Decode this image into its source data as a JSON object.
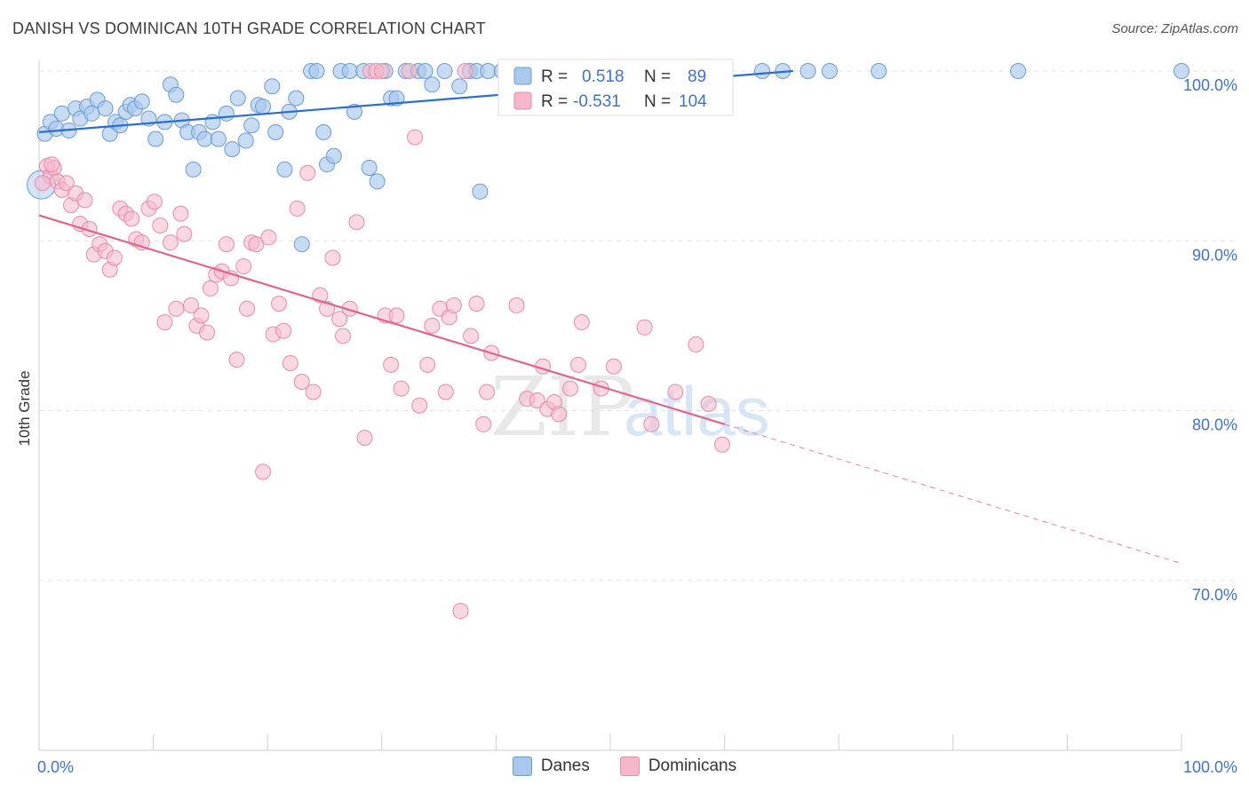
{
  "title": "DANISH VS DOMINICAN 10TH GRADE CORRELATION CHART",
  "source": "Source: ZipAtlas.com",
  "watermark": {
    "zip": "ZIP",
    "atlas": "atlas"
  },
  "stats": [
    {
      "r_label": "R =",
      "r_value": "0.518",
      "n_label": "N =",
      "n_value": "89"
    },
    {
      "r_label": "R =",
      "r_value": "-0.531",
      "n_label": "N =",
      "n_value": "104"
    }
  ],
  "legend": [
    "Danes",
    "Dominicans"
  ],
  "colors": {
    "danes_fill": "#a9c8ec",
    "danes_stroke": "#6b9bd6",
    "danes_line": "#2b6fcc",
    "dom_fill": "#f5b8cb",
    "dom_stroke": "#e88aa8",
    "dom_line": "#e0648e",
    "value_text": "#3f72c8",
    "grid": "#e3e3e3"
  },
  "chart_data": {
    "type": "scatter",
    "title": "DANISH VS DOMINICAN 10TH GRADE CORRELATION CHART",
    "xlabel": "",
    "ylabel": "10th Grade",
    "x_tick_labels": [
      "0.0%",
      "100.0%"
    ],
    "y_tick_labels": [
      "100.0%",
      "90.0%",
      "80.0%",
      "70.0%"
    ],
    "y_ticks": [
      100,
      90,
      80,
      70
    ],
    "xlim": [
      0,
      100
    ],
    "ylim": [
      60,
      100
    ],
    "grid": true,
    "legend_position": "bottom",
    "series": [
      {
        "name": "Danes",
        "r": 0.518,
        "n": 89,
        "trend": {
          "x": [
            0,
            66
          ],
          "y": [
            96.4,
            100.0
          ]
        },
        "points": [
          [
            0.5,
            96.3
          ],
          [
            1.0,
            97.0
          ],
          [
            1.5,
            96.6
          ],
          [
            2.0,
            97.5
          ],
          [
            2.6,
            96.5
          ],
          [
            3.2,
            97.8
          ],
          [
            3.6,
            97.2
          ],
          [
            4.2,
            97.9
          ],
          [
            4.6,
            97.5
          ],
          [
            5.1,
            98.3
          ],
          [
            5.8,
            97.8
          ],
          [
            6.2,
            96.3
          ],
          [
            6.7,
            97.0
          ],
          [
            7.1,
            96.8
          ],
          [
            7.6,
            97.6
          ],
          [
            8.0,
            98.0
          ],
          [
            8.4,
            97.8
          ],
          [
            9.0,
            98.2
          ],
          [
            9.6,
            97.2
          ],
          [
            10.2,
            96.0
          ],
          [
            11.0,
            97.0
          ],
          [
            11.5,
            99.2
          ],
          [
            12.0,
            98.6
          ],
          [
            12.5,
            97.1
          ],
          [
            13.0,
            96.4
          ],
          [
            13.5,
            94.2
          ],
          [
            14.0,
            96.4
          ],
          [
            14.5,
            96.0
          ],
          [
            15.2,
            97.0
          ],
          [
            15.7,
            96.0
          ],
          [
            16.4,
            97.5
          ],
          [
            16.9,
            95.4
          ],
          [
            17.4,
            98.4
          ],
          [
            18.1,
            95.9
          ],
          [
            18.6,
            96.8
          ],
          [
            19.2,
            98.0
          ],
          [
            19.6,
            97.9
          ],
          [
            20.4,
            99.1
          ],
          [
            20.7,
            96.4
          ],
          [
            21.5,
            94.2
          ],
          [
            21.9,
            97.6
          ],
          [
            22.5,
            98.4
          ],
          [
            23.0,
            89.8
          ],
          [
            23.8,
            100.0
          ],
          [
            24.3,
            100.0
          ],
          [
            24.9,
            96.4
          ],
          [
            25.2,
            94.5
          ],
          [
            25.8,
            95.0
          ],
          [
            26.4,
            100.0
          ],
          [
            27.2,
            100.0
          ],
          [
            27.6,
            97.6
          ],
          [
            28.4,
            100.0
          ],
          [
            28.9,
            94.3
          ],
          [
            29.6,
            93.5
          ],
          [
            30.3,
            100.0
          ],
          [
            30.8,
            98.4
          ],
          [
            31.3,
            98.4
          ],
          [
            32.1,
            100.0
          ],
          [
            33.2,
            100.0
          ],
          [
            33.8,
            100.0
          ],
          [
            34.4,
            99.2
          ],
          [
            35.5,
            100.0
          ],
          [
            36.8,
            99.1
          ],
          [
            37.7,
            100.0
          ],
          [
            38.3,
            100.0
          ],
          [
            38.6,
            92.9
          ],
          [
            39.3,
            100.0
          ],
          [
            40.5,
            100.0
          ],
          [
            41.8,
            100.0
          ],
          [
            42.8,
            100.0
          ],
          [
            43.7,
            100.0
          ],
          [
            44.3,
            100.0
          ],
          [
            45.5,
            100.0
          ],
          [
            46.0,
            99.9
          ],
          [
            46.9,
            100.0
          ],
          [
            49.1,
            100.0
          ],
          [
            49.7,
            100.0
          ],
          [
            50.3,
            100.0
          ],
          [
            51.5,
            100.0
          ],
          [
            52.5,
            100.0
          ],
          [
            55.4,
            100.0
          ],
          [
            57.6,
            100.0
          ],
          [
            63.3,
            100.0
          ],
          [
            65.1,
            100.0
          ],
          [
            67.3,
            100.0
          ],
          [
            69.2,
            100.0
          ],
          [
            73.5,
            100.0
          ],
          [
            85.7,
            100.0
          ],
          [
            100.0,
            100.0
          ]
        ]
      },
      {
        "name": "Dominicans",
        "r": -0.531,
        "n": 104,
        "trend": {
          "x": [
            0,
            60
          ],
          "y": [
            91.5,
            79.2
          ]
        },
        "trend_extension": {
          "x": [
            60,
            100
          ],
          "y": [
            79.2,
            71.0
          ]
        },
        "points": [
          [
            0.7,
            94.4
          ],
          [
            1.0,
            93.8
          ],
          [
            1.3,
            94.3
          ],
          [
            1.6,
            93.5
          ],
          [
            2.0,
            93.0
          ],
          [
            2.4,
            93.4
          ],
          [
            2.8,
            92.1
          ],
          [
            3.2,
            92.8
          ],
          [
            3.6,
            91.0
          ],
          [
            4.0,
            92.4
          ],
          [
            4.4,
            90.7
          ],
          [
            4.8,
            89.2
          ],
          [
            5.3,
            89.8
          ],
          [
            5.8,
            89.4
          ],
          [
            6.2,
            88.3
          ],
          [
            6.6,
            89.0
          ],
          [
            7.1,
            91.9
          ],
          [
            7.6,
            91.6
          ],
          [
            8.1,
            91.3
          ],
          [
            8.5,
            90.1
          ],
          [
            9.0,
            89.9
          ],
          [
            9.6,
            91.9
          ],
          [
            10.1,
            92.3
          ],
          [
            10.6,
            90.9
          ],
          [
            11.0,
            85.2
          ],
          [
            11.5,
            89.9
          ],
          [
            12.0,
            86.0
          ],
          [
            12.4,
            91.6
          ],
          [
            12.7,
            90.4
          ],
          [
            13.3,
            86.2
          ],
          [
            13.8,
            85.0
          ],
          [
            14.2,
            85.6
          ],
          [
            14.7,
            84.6
          ],
          [
            15.0,
            87.2
          ],
          [
            15.5,
            88.0
          ],
          [
            16.0,
            88.2
          ],
          [
            16.4,
            89.8
          ],
          [
            16.8,
            87.8
          ],
          [
            17.3,
            83.0
          ],
          [
            17.9,
            88.5
          ],
          [
            18.2,
            86.0
          ],
          [
            18.6,
            89.9
          ],
          [
            19.0,
            89.8
          ],
          [
            19.6,
            76.4
          ],
          [
            20.1,
            90.2
          ],
          [
            20.5,
            84.5
          ],
          [
            21.0,
            86.3
          ],
          [
            21.4,
            84.7
          ],
          [
            22.0,
            82.8
          ],
          [
            22.6,
            91.9
          ],
          [
            23.0,
            81.7
          ],
          [
            23.5,
            94.0
          ],
          [
            24.0,
            81.1
          ],
          [
            24.6,
            86.8
          ],
          [
            25.2,
            86.0
          ],
          [
            25.7,
            89.0
          ],
          [
            26.3,
            85.4
          ],
          [
            26.6,
            84.4
          ],
          [
            27.2,
            86.0
          ],
          [
            27.8,
            91.1
          ],
          [
            28.5,
            78.4
          ],
          [
            29.0,
            100.0
          ],
          [
            29.5,
            100.0
          ],
          [
            30.0,
            100.0
          ],
          [
            30.3,
            85.6
          ],
          [
            30.8,
            82.7
          ],
          [
            31.3,
            85.6
          ],
          [
            31.7,
            81.3
          ],
          [
            32.4,
            100.0
          ],
          [
            32.9,
            96.1
          ],
          [
            33.3,
            80.3
          ],
          [
            34.0,
            82.7
          ],
          [
            34.4,
            85.0
          ],
          [
            35.1,
            86.0
          ],
          [
            35.6,
            81.1
          ],
          [
            35.9,
            85.5
          ],
          [
            36.3,
            86.2
          ],
          [
            36.9,
            68.2
          ],
          [
            37.3,
            100.0
          ],
          [
            37.8,
            84.4
          ],
          [
            38.3,
            86.3
          ],
          [
            38.9,
            79.2
          ],
          [
            39.2,
            81.1
          ],
          [
            39.6,
            83.4
          ],
          [
            41.8,
            86.2
          ],
          [
            42.7,
            80.7
          ],
          [
            43.6,
            80.6
          ],
          [
            44.1,
            82.6
          ],
          [
            44.5,
            80.1
          ],
          [
            45.1,
            80.5
          ],
          [
            45.5,
            79.8
          ],
          [
            46.5,
            81.3
          ],
          [
            47.2,
            82.7
          ],
          [
            47.5,
            85.2
          ],
          [
            49.2,
            81.3
          ],
          [
            50.3,
            82.6
          ],
          [
            53.0,
            84.9
          ],
          [
            53.6,
            79.2
          ],
          [
            55.7,
            81.1
          ],
          [
            57.5,
            83.9
          ],
          [
            58.6,
            80.4
          ],
          [
            59.8,
            78.0
          ],
          [
            0.3,
            93.4
          ],
          [
            1.1,
            94.5
          ]
        ]
      }
    ]
  }
}
